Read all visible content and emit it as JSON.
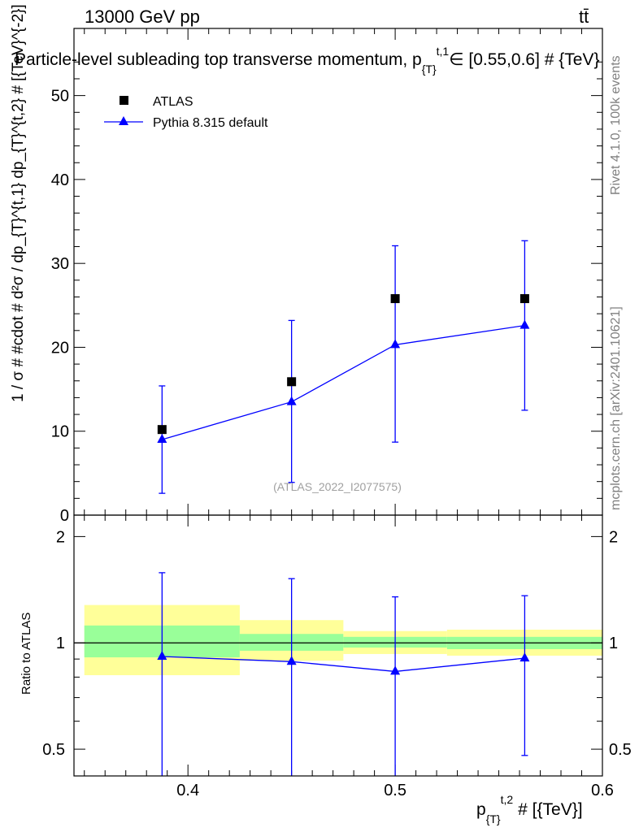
{
  "header": {
    "left_label": "13000 GeV pp",
    "right_label": "tt̄"
  },
  "side_labels": {
    "rivet": "Rivet 4.1.0,  100k events",
    "mcplots": "mcplots.cern.ch [arXiv:2401.10621]"
  },
  "watermark": "(ATLAS_2022_I2077575)",
  "chart_data": [
    {
      "type": "scatter",
      "panel": "main",
      "title": "Particle-level subleading top transverse momentum, p_{T}^{t,1} ∈ [0.55,0.6] # {TeV}",
      "title_text": "Particle-level subleading top transverse momentum, p",
      "title_sub": "{T}",
      "title_sup": "t,1",
      "title_tail": "∈ [0.55,0.6] # {TeV}",
      "ylabel": "1 / σ # #cdot # d²σ / dp_{T}^{t,1} dp_{T}^{t,2} # [{TeV}^{-2}]",
      "xlim": [
        0.345,
        0.6
      ],
      "ylim": [
        0,
        58
      ],
      "yticks": [
        0,
        10,
        20,
        30,
        40,
        50
      ],
      "ytick_labels": [
        "0",
        "10",
        "20",
        "30",
        "40",
        "50"
      ],
      "legend": {
        "placement": "top-left",
        "entries": [
          "ATLAS",
          "Pythia 8.315 default"
        ]
      },
      "series": [
        {
          "name": "ATLAS",
          "marker": "square",
          "color": "#000000",
          "x": [
            0.3875,
            0.45,
            0.5,
            0.5625
          ],
          "y": [
            10.2,
            15.9,
            25.8,
            25.8
          ]
        },
        {
          "name": "Pythia 8.315 default",
          "marker": "triangle",
          "color": "#0000ff",
          "x": [
            0.3875,
            0.45,
            0.5,
            0.5625
          ],
          "y": [
            9.0,
            13.5,
            20.3,
            22.6
          ],
          "yerr_low": [
            2.6,
            3.9,
            8.7,
            12.5
          ],
          "yerr_high": [
            15.4,
            23.2,
            32.1,
            32.7
          ]
        }
      ]
    },
    {
      "type": "scatter",
      "panel": "ratio",
      "ylabel": "Ratio to ATLAS",
      "xlabel": "p_{T}^{t,2} # [{TeV}]",
      "xlabel_main": "p",
      "xlabel_sub": "{T}",
      "xlabel_sup": "t,2",
      "xlabel_tail": "# [{TeV}]",
      "xlim": [
        0.345,
        0.6
      ],
      "ylim": [
        0.42,
        2.3
      ],
      "yscale": "log",
      "xticks": [
        0.4,
        0.5,
        0.6
      ],
      "xtick_labels": [
        "0.4",
        "0.5",
        "0.6"
      ],
      "yticks": [
        0.5,
        1,
        2
      ],
      "ytick_labels": [
        "0.5",
        "1",
        "2"
      ],
      "bands": [
        {
          "x0": 0.35,
          "x1": 0.425,
          "green": [
            0.91,
            1.12
          ],
          "yellow": [
            0.81,
            1.28
          ]
        },
        {
          "x0": 0.425,
          "x1": 0.475,
          "green": [
            0.95,
            1.06
          ],
          "yellow": [
            0.89,
            1.16
          ]
        },
        {
          "x0": 0.475,
          "x1": 0.525,
          "green": [
            0.97,
            1.04
          ],
          "yellow": [
            0.93,
            1.08
          ]
        },
        {
          "x0": 0.525,
          "x1": 0.6,
          "green": [
            0.96,
            1.04
          ],
          "yellow": [
            0.92,
            1.09
          ]
        }
      ],
      "series": [
        {
          "name": "Pythia 8.315 default",
          "color": "#0000ff",
          "x": [
            0.3875,
            0.45,
            0.5,
            0.5625
          ],
          "y": [
            0.915,
            0.885,
            0.83,
            0.905
          ],
          "yerr_low": [
            0.4,
            0.4,
            0.4,
            0.48
          ],
          "yerr_high": [
            1.58,
            1.52,
            1.35,
            1.36
          ]
        }
      ]
    }
  ]
}
